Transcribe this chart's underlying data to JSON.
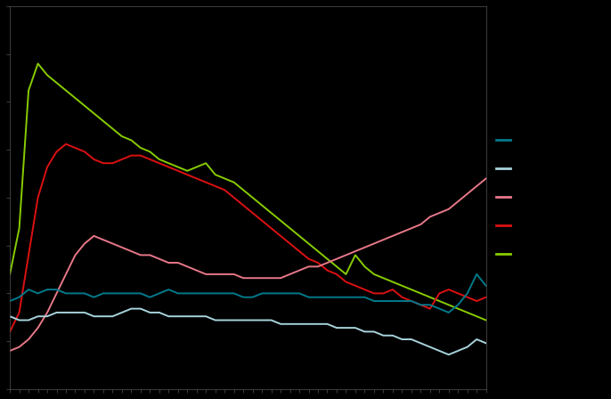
{
  "background_color": "#000000",
  "plot_bg_color": "#000000",
  "text_color": "#808080",
  "n_points": 52,
  "colors": {
    "teal": "#007A8C",
    "light_blue": "#A8D4DC",
    "pink": "#E87888",
    "red": "#DD1111",
    "green": "#88CC00"
  },
  "ylim": [
    0,
    10
  ],
  "xlim": [
    0,
    51
  ],
  "figsize": [
    6.86,
    4.48
  ],
  "dpi": 100,
  "spine_color": "#555555",
  "tick_color": "#555555",
  "green": [
    3.0,
    4.2,
    7.8,
    8.5,
    8.2,
    8.0,
    7.8,
    7.6,
    7.4,
    7.2,
    7.0,
    6.8,
    6.6,
    6.5,
    6.3,
    6.2,
    6.0,
    5.9,
    5.8,
    5.7,
    5.8,
    5.9,
    5.6,
    5.5,
    5.4,
    5.2,
    5.0,
    4.8,
    4.6,
    4.4,
    4.2,
    4.0,
    3.8,
    3.6,
    3.4,
    3.2,
    3.0,
    3.5,
    3.2,
    3.0,
    2.9,
    2.8,
    2.7,
    2.6,
    2.5,
    2.4,
    2.3,
    2.2,
    2.1,
    2.0,
    1.9,
    1.8
  ],
  "red": [
    1.5,
    2.0,
    3.5,
    5.0,
    5.8,
    6.2,
    6.4,
    6.3,
    6.2,
    6.0,
    5.9,
    5.9,
    6.0,
    6.1,
    6.1,
    6.0,
    5.9,
    5.8,
    5.7,
    5.6,
    5.5,
    5.4,
    5.3,
    5.2,
    5.0,
    4.8,
    4.6,
    4.4,
    4.2,
    4.0,
    3.8,
    3.6,
    3.4,
    3.3,
    3.1,
    3.0,
    2.8,
    2.7,
    2.6,
    2.5,
    2.5,
    2.6,
    2.4,
    2.3,
    2.2,
    2.1,
    2.5,
    2.6,
    2.5,
    2.4,
    2.3,
    2.4
  ],
  "pink": [
    1.0,
    1.1,
    1.3,
    1.6,
    2.0,
    2.5,
    3.0,
    3.5,
    3.8,
    4.0,
    3.9,
    3.8,
    3.7,
    3.6,
    3.5,
    3.5,
    3.4,
    3.3,
    3.3,
    3.2,
    3.1,
    3.0,
    3.0,
    3.0,
    3.0,
    2.9,
    2.9,
    2.9,
    2.9,
    2.9,
    3.0,
    3.1,
    3.2,
    3.2,
    3.3,
    3.4,
    3.5,
    3.6,
    3.7,
    3.8,
    3.9,
    4.0,
    4.1,
    4.2,
    4.3,
    4.5,
    4.6,
    4.7,
    4.9,
    5.1,
    5.3,
    5.5
  ],
  "teal": [
    2.3,
    2.4,
    2.6,
    2.5,
    2.6,
    2.6,
    2.5,
    2.5,
    2.5,
    2.4,
    2.5,
    2.5,
    2.5,
    2.5,
    2.5,
    2.4,
    2.5,
    2.6,
    2.5,
    2.5,
    2.5,
    2.5,
    2.5,
    2.5,
    2.5,
    2.4,
    2.4,
    2.5,
    2.5,
    2.5,
    2.5,
    2.5,
    2.4,
    2.4,
    2.4,
    2.4,
    2.4,
    2.4,
    2.4,
    2.3,
    2.3,
    2.3,
    2.3,
    2.3,
    2.2,
    2.2,
    2.1,
    2.0,
    2.2,
    2.5,
    3.0,
    2.7
  ],
  "light_blue": [
    1.9,
    1.8,
    1.8,
    1.9,
    1.9,
    2.0,
    2.0,
    2.0,
    2.0,
    1.9,
    1.9,
    1.9,
    2.0,
    2.1,
    2.1,
    2.0,
    2.0,
    1.9,
    1.9,
    1.9,
    1.9,
    1.9,
    1.8,
    1.8,
    1.8,
    1.8,
    1.8,
    1.8,
    1.8,
    1.7,
    1.7,
    1.7,
    1.7,
    1.7,
    1.7,
    1.6,
    1.6,
    1.6,
    1.5,
    1.5,
    1.4,
    1.4,
    1.3,
    1.3,
    1.2,
    1.1,
    1.0,
    0.9,
    1.0,
    1.1,
    1.3,
    1.2
  ]
}
